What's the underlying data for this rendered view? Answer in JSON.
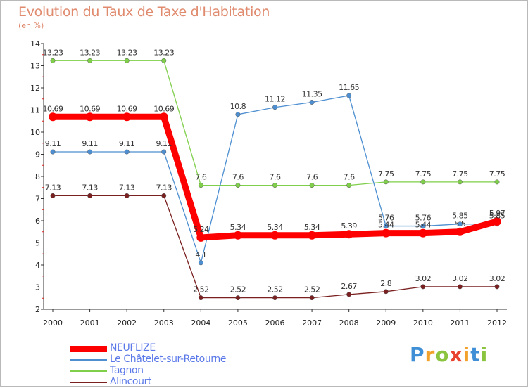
{
  "chart_data": {
    "type": "line",
    "title": "Evolution du Taux de Taxe d'Habitation",
    "subtitle": "(en %)",
    "x": [
      "2000",
      "2001",
      "2002",
      "2003",
      "2004",
      "2005",
      "2006",
      "2007",
      "2008",
      "2009",
      "2010",
      "2011",
      "2012"
    ],
    "ylim": [
      2,
      14
    ],
    "yticks": [
      2,
      3,
      4,
      5,
      6,
      7,
      8,
      9,
      10,
      11,
      12,
      13,
      14
    ],
    "grid": false,
    "legend_position": "bottom-left",
    "series": [
      {
        "name": "NEUFLIZE",
        "color": "#ff0000",
        "values": [
          10.69,
          10.69,
          10.69,
          10.69,
          5.24,
          5.34,
          5.34,
          5.34,
          5.39,
          5.44,
          5.44,
          5.5,
          5.97
        ],
        "labels": [
          "10.69",
          "10.69",
          "10.69",
          "10.69",
          "5.24",
          "5.34",
          "5.34",
          "5.34",
          "5.39",
          "5.44",
          "5.44",
          "5.5",
          "5.97"
        ]
      },
      {
        "name": "Le Châtelet-sur-Retourne",
        "color": "#4d8fd1",
        "values": [
          9.11,
          9.11,
          9.11,
          9.11,
          4.1,
          10.8,
          11.12,
          11.35,
          11.65,
          5.76,
          5.76,
          5.85,
          5.85
        ],
        "labels": [
          "9.11",
          "9.11",
          "9.11",
          "9.11",
          "4.1",
          "10.8",
          "11.12",
          "11.35",
          "11.65",
          "5.76",
          "5.76",
          "5.85",
          "5.85"
        ]
      },
      {
        "name": "Tagnon",
        "color": "#7fcf4a",
        "values": [
          13.23,
          13.23,
          13.23,
          13.23,
          7.6,
          7.6,
          7.6,
          7.6,
          7.6,
          7.75,
          7.75,
          7.75,
          7.75
        ],
        "labels": [
          "13.23",
          "13.23",
          "13.23",
          "13.23",
          "7.6",
          "7.6",
          "7.6",
          "7.6",
          "7.6",
          "7.75",
          "7.75",
          "7.75",
          "7.75"
        ]
      },
      {
        "name": "Alincourt",
        "color": "#7a2020",
        "values": [
          7.13,
          7.13,
          7.13,
          7.13,
          2.52,
          2.52,
          2.52,
          2.52,
          2.67,
          2.8,
          3.02,
          3.02,
          3.02
        ],
        "labels": [
          "7.13",
          "7.13",
          "7.13",
          "7.13",
          "2.52",
          "2.52",
          "2.52",
          "2.52",
          "2.67",
          "2.8",
          "3.02",
          "3.02",
          "3.02"
        ]
      }
    ]
  },
  "logo": {
    "letters": [
      "P",
      "r",
      "o",
      "x",
      "i",
      "t",
      "i"
    ],
    "colors": [
      "#3f8fd6",
      "#f2a12a",
      "#8bc43f",
      "#e8432e",
      "#f2a12a",
      "#3f8fd6",
      "#8bc43f"
    ]
  }
}
